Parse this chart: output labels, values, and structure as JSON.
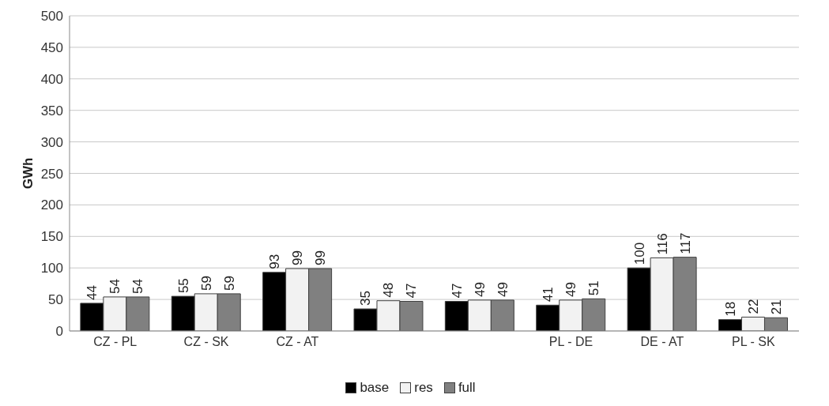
{
  "chart_data": {
    "type": "bar",
    "ylabel": "GWh",
    "categories": [
      "CZ - PL",
      "CZ - SK",
      "CZ - AT",
      null,
      null,
      "PL - DE",
      "DE - AT",
      "PL - SK"
    ],
    "series": [
      {
        "name": "base",
        "color": "#000000",
        "values": [
          44,
          55,
          93,
          35,
          47,
          41,
          100,
          18
        ]
      },
      {
        "name": "res",
        "color": "#f2f2f2",
        "values": [
          54,
          59,
          99,
          48,
          49,
          49,
          116,
          22
        ]
      },
      {
        "name": "full",
        "color": "#808080",
        "values": [
          54,
          59,
          99,
          47,
          49,
          51,
          117,
          21
        ]
      }
    ],
    "ylim": [
      0,
      500
    ],
    "yticks": [
      0,
      50,
      100,
      150,
      200,
      250,
      300,
      350,
      400,
      450,
      500
    ],
    "grid": "y",
    "legend": "bottom",
    "data_labels": true
  }
}
